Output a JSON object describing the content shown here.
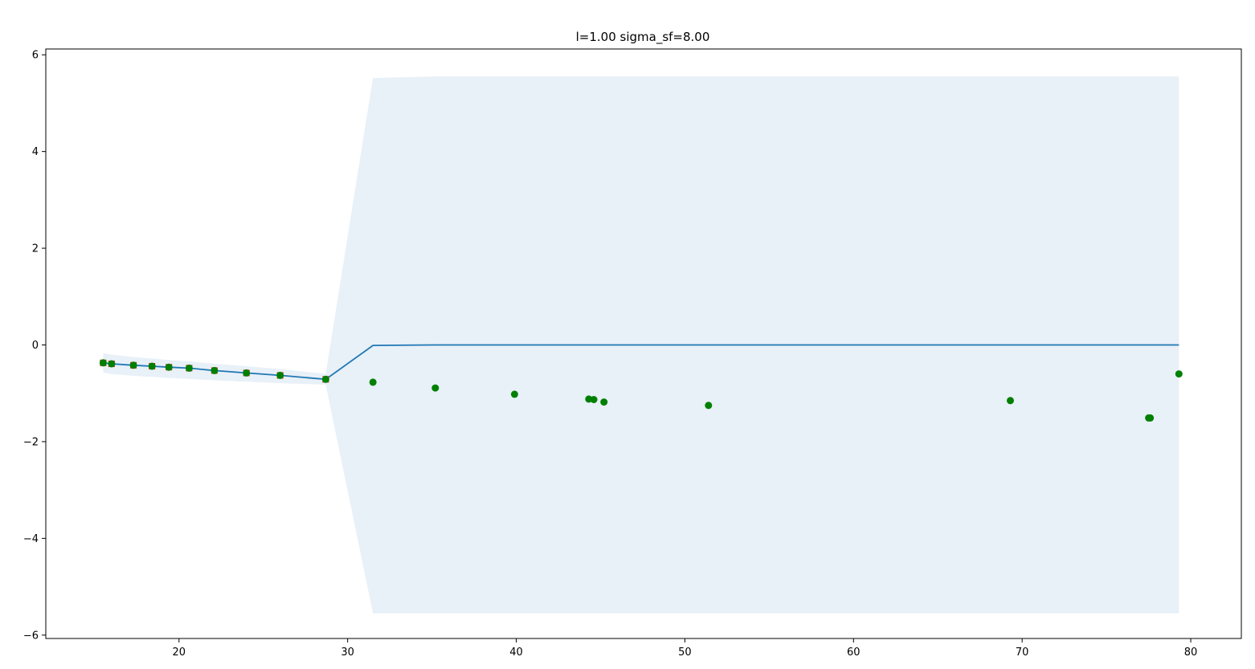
{
  "chart_data": {
    "type": "line",
    "title": "l=1.00 sigma_sf=8.00",
    "xlabel": "",
    "ylabel": "",
    "xlim": [
      12.1,
      83.0
    ],
    "ylim": [
      -6.07,
      6.12
    ],
    "x_ticks": [
      20,
      30,
      40,
      50,
      60,
      70,
      80
    ],
    "y_ticks": [
      -6,
      -4,
      -2,
      0,
      2,
      4,
      6
    ],
    "x_tick_labels": [
      "20",
      "30",
      "40",
      "50",
      "60",
      "70",
      "80"
    ],
    "y_tick_labels": [
      "−6",
      "−4",
      "−2",
      "0",
      "2",
      "4",
      "6"
    ],
    "grid": false,
    "legend": "none",
    "colors": {
      "mean_line": "#1f77b4",
      "confidence_band": "#e8f0f8",
      "training_points": "#d62728",
      "observations": "#008000"
    },
    "series": [
      {
        "kind": "band",
        "x": [
          15.5,
          16.0,
          17.3,
          18.4,
          19.4,
          20.6,
          22.1,
          24.0,
          26.0,
          28.7,
          31.5,
          35.2,
          40.0,
          50.0,
          60.0,
          70.0,
          79.3
        ],
        "upper": [
          -0.17,
          -0.2,
          -0.25,
          -0.28,
          -0.31,
          -0.34,
          -0.39,
          -0.44,
          -0.5,
          -0.6,
          5.52,
          5.55,
          5.55,
          5.55,
          5.55,
          5.55,
          5.55
        ],
        "lower": [
          -0.57,
          -0.6,
          -0.64,
          -0.66,
          -0.68,
          -0.7,
          -0.73,
          -0.76,
          -0.79,
          -0.82,
          -5.55,
          -5.55,
          -5.55,
          -5.55,
          -5.55,
          -5.55,
          -5.55
        ]
      },
      {
        "kind": "line",
        "x": [
          15.5,
          16.0,
          17.3,
          18.4,
          19.4,
          20.6,
          22.1,
          24.0,
          26.0,
          28.7,
          31.5,
          35.2,
          40.0,
          50.0,
          60.0,
          70.0,
          79.3
        ],
        "y": [
          -0.37,
          -0.39,
          -0.42,
          -0.44,
          -0.46,
          -0.48,
          -0.53,
          -0.58,
          -0.63,
          -0.71,
          -0.01,
          0.0,
          0.0,
          0.0,
          0.0,
          0.0,
          0.0
        ]
      },
      {
        "kind": "observed",
        "x": [
          15.5,
          16.0,
          17.3,
          18.4,
          19.4,
          20.6,
          22.1,
          24.0,
          26.0,
          28.7
        ],
        "y": [
          -0.37,
          -0.39,
          -0.42,
          -0.44,
          -0.46,
          -0.48,
          -0.53,
          -0.58,
          -0.63,
          -0.71
        ]
      },
      {
        "kind": "scatter",
        "x": [
          15.5,
          16.0,
          17.3,
          18.4,
          19.4,
          20.6,
          22.1,
          24.0,
          26.0,
          28.7,
          31.5,
          35.2,
          39.9,
          44.3,
          44.6,
          45.2,
          51.4,
          69.3,
          77.5,
          77.6,
          79.3
        ],
        "y": [
          -0.37,
          -0.39,
          -0.42,
          -0.44,
          -0.46,
          -0.48,
          -0.53,
          -0.58,
          -0.63,
          -0.71,
          -0.77,
          -0.89,
          -1.02,
          -1.12,
          -1.13,
          -1.18,
          -1.25,
          -1.15,
          -1.51,
          -1.51,
          -0.6
        ]
      }
    ]
  }
}
